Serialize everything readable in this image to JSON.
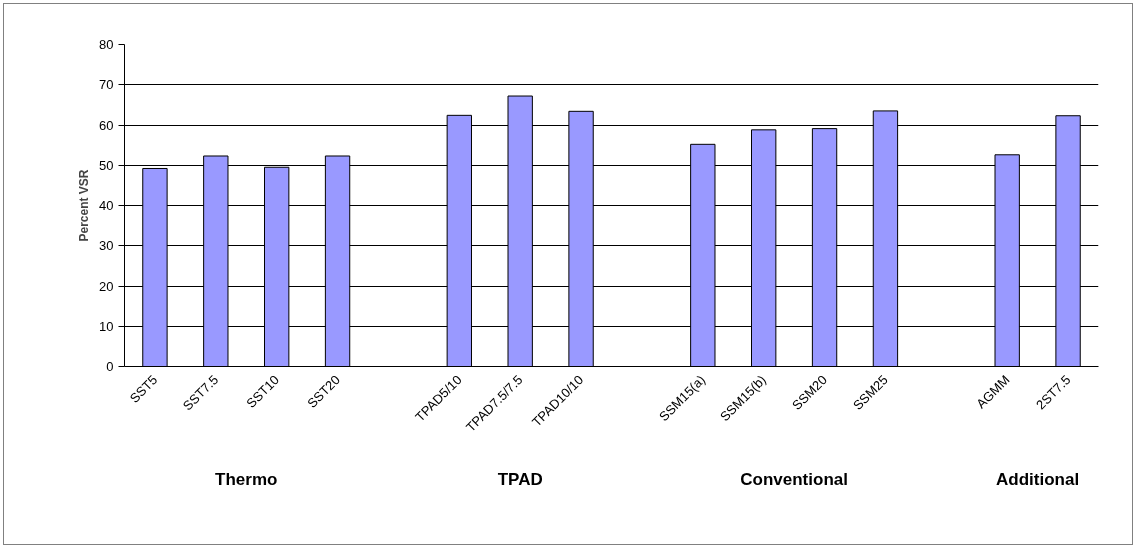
{
  "chart_data": {
    "type": "bar",
    "ylabel": "Percent VSR",
    "categories": [
      "SST5",
      "SST7.5",
      "SST10",
      "SST20",
      null,
      "TPAD5/10",
      "TPAD7.5/7.5",
      "TPAD10/10",
      null,
      "SSM15(a)",
      "SSM15(b)",
      "SSM20",
      "SSM25",
      null,
      "AGMM",
      "2ST7.5"
    ],
    "values": [
      49.2,
      52.3,
      49.5,
      52.3,
      null,
      62.4,
      67.2,
      63.4,
      null,
      55.2,
      58.8,
      59.1,
      63.5,
      null,
      52.6,
      62.3
    ],
    "color": "#9999ff",
    "ylim": [
      0,
      80
    ],
    "yticks": [
      0,
      10,
      20,
      30,
      40,
      50,
      60,
      70,
      80
    ],
    "grid": "y",
    "annotations": [
      "Thermo",
      "TPAD",
      "Conventional",
      "Additional"
    ]
  }
}
